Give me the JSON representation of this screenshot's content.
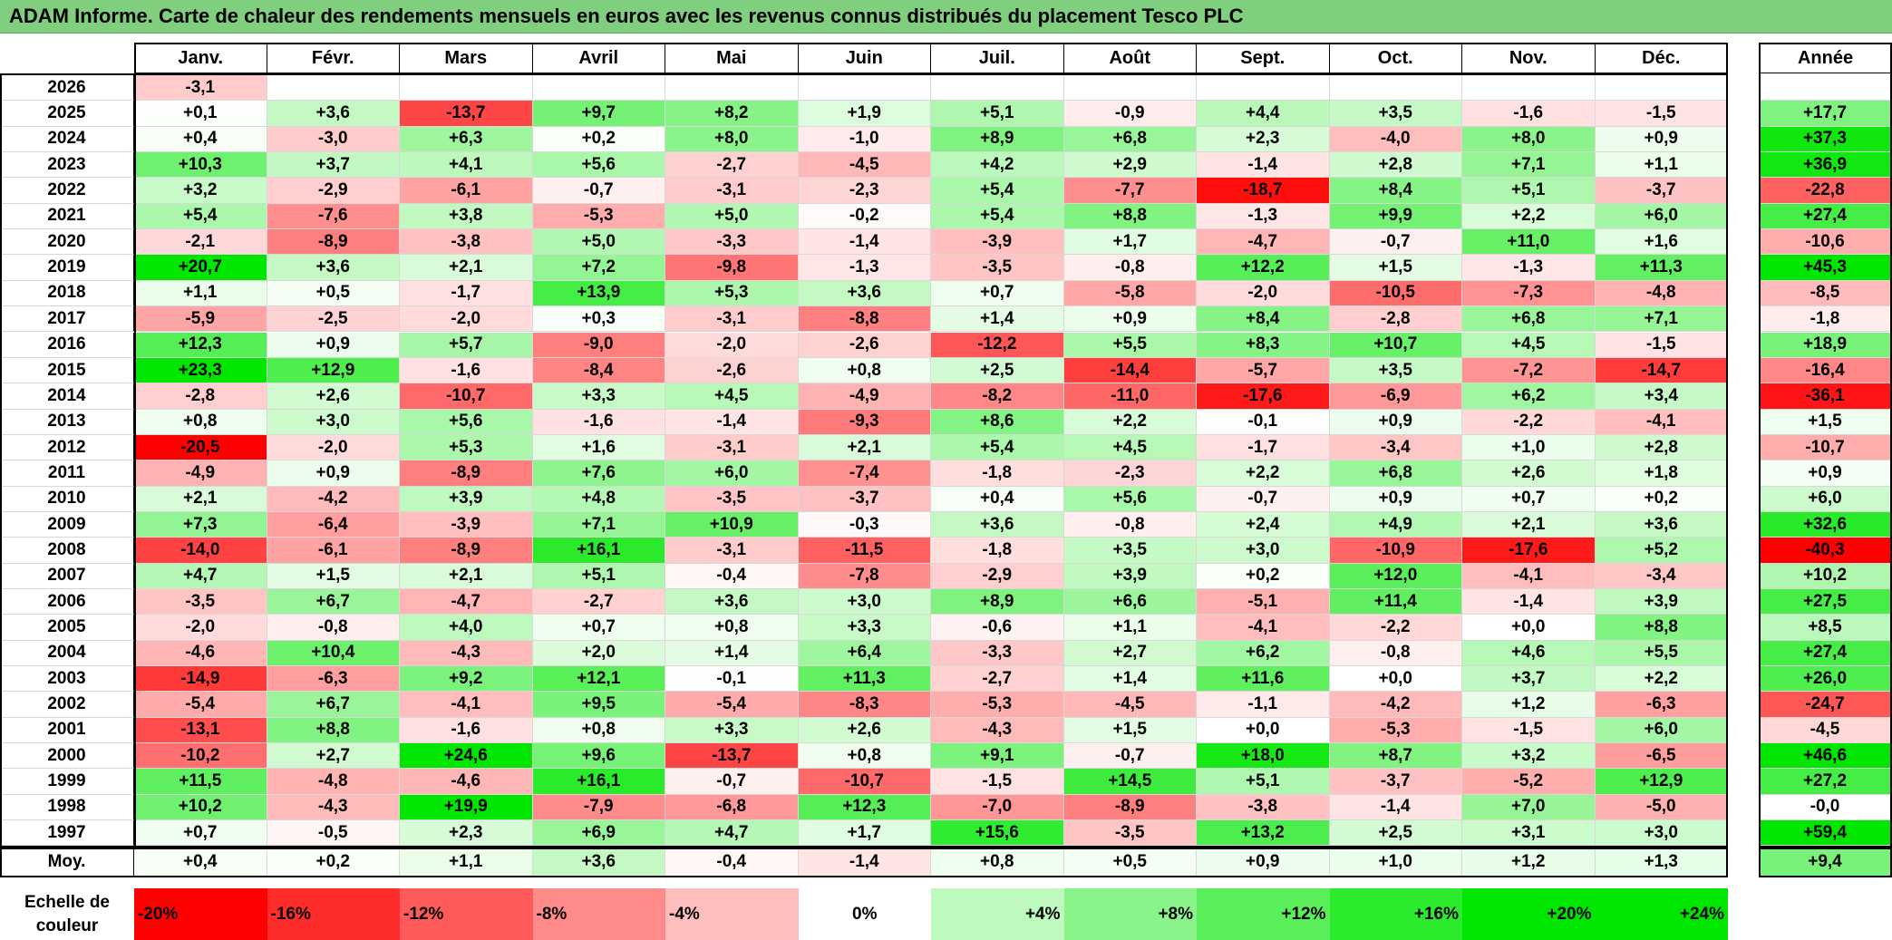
{
  "title": "ADAM Informe. Carte de chaleur des rendements mensuels en euros avec les revenus connus distribués du placement Tesco PLC",
  "chart_data": {
    "type": "heatmap",
    "months": [
      "Janv.",
      "Févr.",
      "Mars",
      "Avril",
      "Mai",
      "Juin",
      "Juil.",
      "Août",
      "Sept.",
      "Oct.",
      "Nov.",
      "Déc."
    ],
    "year_header": "Année",
    "avg_label": "Moy.",
    "rows": [
      {
        "year": "2026",
        "cells": [
          "-3,1",
          "",
          "",
          "",
          "",
          "",
          "",
          "",
          "",
          "",
          "",
          ""
        ],
        "annual": ""
      },
      {
        "year": "2025",
        "cells": [
          "+0,1",
          "+3,6",
          "-13,7",
          "+9,7",
          "+8,2",
          "+1,9",
          "+5,1",
          "-0,9",
          "+4,4",
          "+3,5",
          "-1,6",
          "-1,5"
        ],
        "annual": "+17,7"
      },
      {
        "year": "2024",
        "cells": [
          "+0,4",
          "-3,0",
          "+6,3",
          "+0,2",
          "+8,0",
          "-1,0",
          "+8,9",
          "+6,8",
          "+2,3",
          "-4,0",
          "+8,0",
          "+0,9"
        ],
        "annual": "+37,3"
      },
      {
        "year": "2023",
        "cells": [
          "+10,3",
          "+3,7",
          "+4,1",
          "+5,6",
          "-2,7",
          "-4,5",
          "+4,2",
          "+2,9",
          "-1,4",
          "+2,8",
          "+7,1",
          "+1,1"
        ],
        "annual": "+36,9"
      },
      {
        "year": "2022",
        "cells": [
          "+3,2",
          "-2,9",
          "-6,1",
          "-0,7",
          "-3,1",
          "-2,3",
          "+5,4",
          "-7,7",
          "-18,7",
          "+8,4",
          "+5,1",
          "-3,7"
        ],
        "annual": "-22,8"
      },
      {
        "year": "2021",
        "cells": [
          "+5,4",
          "-7,6",
          "+3,8",
          "-5,3",
          "+5,0",
          "-0,2",
          "+5,4",
          "+8,8",
          "-1,3",
          "+9,9",
          "+2,2",
          "+6,0"
        ],
        "annual": "+27,4"
      },
      {
        "year": "2020",
        "cells": [
          "-2,1",
          "-8,9",
          "-3,8",
          "+5,0",
          "-3,3",
          "-1,4",
          "-3,9",
          "+1,7",
          "-4,7",
          "-0,7",
          "+11,0",
          "+1,6"
        ],
        "annual": "-10,6"
      },
      {
        "year": "2019",
        "cells": [
          "+20,7",
          "+3,6",
          "+2,1",
          "+7,2",
          "-9,8",
          "-1,3",
          "-3,5",
          "-0,8",
          "+12,2",
          "+1,5",
          "-1,3",
          "+11,3"
        ],
        "annual": "+45,3"
      },
      {
        "year": "2018",
        "cells": [
          "+1,1",
          "+0,5",
          "-1,7",
          "+13,9",
          "+5,3",
          "+3,6",
          "+0,7",
          "-5,8",
          "-2,0",
          "-10,5",
          "-7,3",
          "-4,8"
        ],
        "annual": "-8,5"
      },
      {
        "year": "2017",
        "cells": [
          "-5,9",
          "-2,5",
          "-2,0",
          "+0,3",
          "-3,1",
          "-8,8",
          "+1,4",
          "+0,9",
          "+8,4",
          "-2,8",
          "+6,8",
          "+7,1"
        ],
        "annual": "-1,8"
      },
      {
        "year": "2016",
        "cells": [
          "+12,3",
          "+0,9",
          "+5,7",
          "-9,0",
          "-2,0",
          "-2,6",
          "-12,2",
          "+5,5",
          "+8,3",
          "+10,7",
          "+4,5",
          "-1,5"
        ],
        "annual": "+18,9"
      },
      {
        "year": "2015",
        "cells": [
          "+23,3",
          "+12,9",
          "-1,6",
          "-8,4",
          "-2,6",
          "+0,8",
          "+2,5",
          "-14,4",
          "-5,7",
          "+3,5",
          "-7,2",
          "-14,7"
        ],
        "annual": "-16,4"
      },
      {
        "year": "2014",
        "cells": [
          "-2,8",
          "+2,6",
          "-10,7",
          "+3,3",
          "+4,5",
          "-4,9",
          "-8,2",
          "-11,0",
          "-17,6",
          "-6,9",
          "+6,2",
          "+3,4"
        ],
        "annual": "-36,1"
      },
      {
        "year": "2013",
        "cells": [
          "+0,8",
          "+3,0",
          "+5,6",
          "-1,6",
          "-1,4",
          "-9,3",
          "+8,6",
          "+2,2",
          "-0,1",
          "+0,9",
          "-2,2",
          "-4,1"
        ],
        "annual": "+1,5"
      },
      {
        "year": "2012",
        "cells": [
          "-20,5",
          "-2,0",
          "+5,3",
          "+1,6",
          "-3,1",
          "+2,1",
          "+5,4",
          "+4,5",
          "-1,7",
          "-3,4",
          "+1,0",
          "+2,8"
        ],
        "annual": "-10,7"
      },
      {
        "year": "2011",
        "cells": [
          "-4,9",
          "+0,9",
          "-8,9",
          "+7,6",
          "+6,0",
          "-7,4",
          "-1,8",
          "-2,3",
          "+2,2",
          "+6,8",
          "+2,6",
          "+1,8"
        ],
        "annual": "+0,9"
      },
      {
        "year": "2010",
        "cells": [
          "+2,1",
          "-4,2",
          "+3,9",
          "+4,8",
          "-3,5",
          "-3,7",
          "+0,4",
          "+5,6",
          "-0,7",
          "+0,9",
          "+0,7",
          "+0,2"
        ],
        "annual": "+6,0"
      },
      {
        "year": "2009",
        "cells": [
          "+7,3",
          "-6,4",
          "-3,9",
          "+7,1",
          "+10,9",
          "-0,3",
          "+3,6",
          "-0,8",
          "+2,4",
          "+4,9",
          "+2,1",
          "+3,6"
        ],
        "annual": "+32,6"
      },
      {
        "year": "2008",
        "cells": [
          "-14,0",
          "-6,1",
          "-8,9",
          "+16,1",
          "-3,1",
          "-11,5",
          "-1,8",
          "+3,5",
          "+3,0",
          "-10,9",
          "-17,6",
          "+5,2"
        ],
        "annual": "-40,3"
      },
      {
        "year": "2007",
        "cells": [
          "+4,7",
          "+1,5",
          "+2,1",
          "+5,1",
          "-0,4",
          "-7,8",
          "-2,9",
          "+3,9",
          "+0,2",
          "+12,0",
          "-4,1",
          "-3,4"
        ],
        "annual": "+10,2"
      },
      {
        "year": "2006",
        "cells": [
          "-3,5",
          "+6,7",
          "-4,7",
          "-2,7",
          "+3,6",
          "+3,0",
          "+8,9",
          "+6,6",
          "-5,1",
          "+11,4",
          "-1,4",
          "+3,9"
        ],
        "annual": "+27,5"
      },
      {
        "year": "2005",
        "cells": [
          "-2,0",
          "-0,8",
          "+4,0",
          "+0,7",
          "+0,8",
          "+3,3",
          "-0,6",
          "+1,1",
          "-4,1",
          "-2,2",
          "+0,0",
          "+8,8"
        ],
        "annual": "+8,5"
      },
      {
        "year": "2004",
        "cells": [
          "-4,6",
          "+10,4",
          "-4,3",
          "+2,0",
          "+1,4",
          "+6,4",
          "-3,3",
          "+2,7",
          "+6,2",
          "-0,8",
          "+4,6",
          "+5,5"
        ],
        "annual": "+27,4"
      },
      {
        "year": "2003",
        "cells": [
          "-14,9",
          "-6,3",
          "+9,2",
          "+12,1",
          "-0,1",
          "+11,3",
          "-2,7",
          "+1,4",
          "+11,6",
          "+0,0",
          "+3,7",
          "+2,2"
        ],
        "annual": "+26,0"
      },
      {
        "year": "2002",
        "cells": [
          "-5,4",
          "+6,7",
          "-4,1",
          "+9,5",
          "-5,4",
          "-8,3",
          "-5,3",
          "-4,5",
          "-1,1",
          "-4,2",
          "+1,2",
          "-6,3"
        ],
        "annual": "-24,7"
      },
      {
        "year": "2001",
        "cells": [
          "-13,1",
          "+8,8",
          "-1,6",
          "+0,8",
          "+3,3",
          "+2,6",
          "-4,3",
          "+1,5",
          "+0,0",
          "-5,3",
          "-1,5",
          "+6,0"
        ],
        "annual": "-4,5"
      },
      {
        "year": "2000",
        "cells": [
          "-10,2",
          "+2,7",
          "+24,6",
          "+9,6",
          "-13,7",
          "+0,8",
          "+9,1",
          "-0,7",
          "+18,0",
          "+8,7",
          "+3,2",
          "-6,5"
        ],
        "annual": "+46,6"
      },
      {
        "year": "1999",
        "cells": [
          "+11,5",
          "-4,8",
          "-4,6",
          "+16,1",
          "-0,7",
          "-10,7",
          "-1,5",
          "+14,5",
          "+5,1",
          "-3,7",
          "-5,2",
          "+12,9"
        ],
        "annual": "+27,2"
      },
      {
        "year": "1998",
        "cells": [
          "+10,2",
          "-4,3",
          "+19,9",
          "-7,9",
          "-6,8",
          "+12,3",
          "-7,0",
          "-8,9",
          "-3,8",
          "-1,4",
          "+7,0",
          "-5,0"
        ],
        "annual": "-0,0"
      },
      {
        "year": "1997",
        "cells": [
          "+0,7",
          "-0,5",
          "+2,3",
          "+6,9",
          "+4,7",
          "+1,7",
          "+15,6",
          "-3,5",
          "+13,2",
          "+2,5",
          "+3,1",
          "+3,0"
        ],
        "annual": "+59,4"
      }
    ],
    "averages": [
      "+0,4",
      "+0,2",
      "+1,1",
      "+3,6",
      "-0,4",
      "-1,4",
      "+0,8",
      "+0,5",
      "+0,9",
      "+1,0",
      "+1,2",
      "+1,3"
    ],
    "annual_average": "+9,4",
    "scale_label": "Echelle de couleur",
    "scale": [
      {
        "label": "-20%",
        "value": -20
      },
      {
        "label": "-16%",
        "value": -16
      },
      {
        "label": "-12%",
        "value": -12
      },
      {
        "label": "-8%",
        "value": -8
      },
      {
        "label": "-4%",
        "value": -4
      },
      {
        "label": "0%",
        "value": 0
      },
      {
        "label": "+4%",
        "value": 4
      },
      {
        "label": "+8%",
        "value": 8
      },
      {
        "label": "+12%",
        "value": 12
      },
      {
        "label": "+16%",
        "value": 16
      },
      {
        "label": "+20%",
        "value": 20
      },
      {
        "label": "+24%",
        "value": 24
      }
    ],
    "colors": {
      "negative_max": "#ff0000",
      "neutral": "#ffffff",
      "positive_max": "#00e600",
      "title_bar": "#7fcf7f"
    }
  }
}
